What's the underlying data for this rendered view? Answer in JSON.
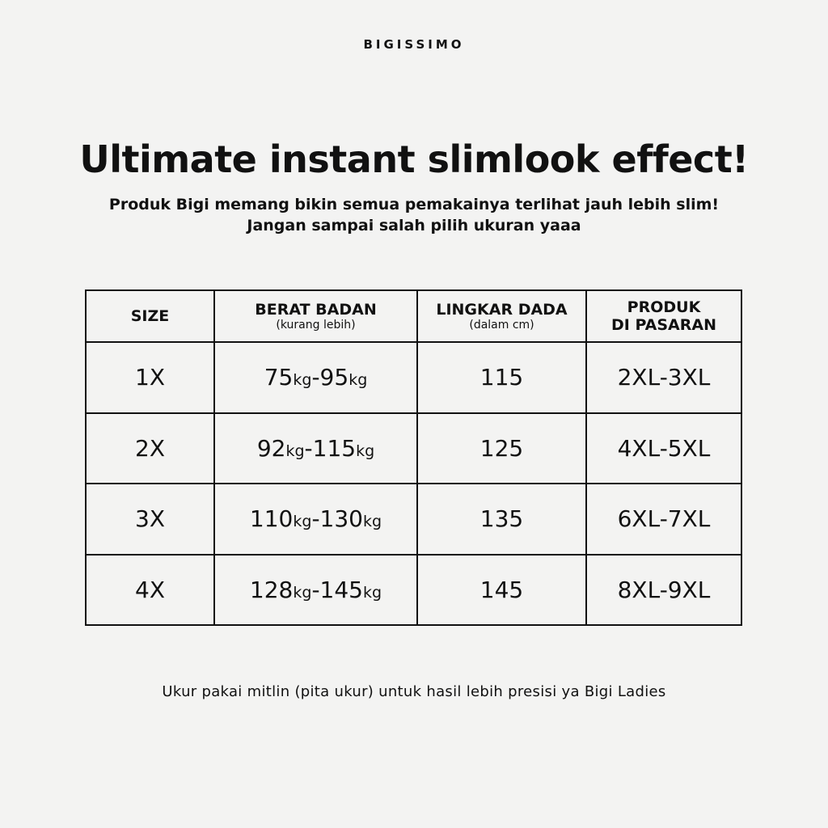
{
  "brand": "BIGISSIMO",
  "title": "Ultimate instant slimlook effect!",
  "subtitle": [
    "Produk Bigi memang bikin semua pemakainya terlihat jauh lebih slim!",
    "Jangan sampai salah pilih ukuran yaaa"
  ],
  "table": {
    "headers": [
      {
        "label": "SIZE",
        "sub": ""
      },
      {
        "label": "BERAT BADAN",
        "sub": "(kurang lebih)"
      },
      {
        "label": "LINGKAR DADA",
        "sub": "(dalam cm)"
      },
      {
        "label": "PRODUK",
        "label2": "DI PASARAN"
      }
    ],
    "rows": [
      {
        "size": "1X",
        "w_from": "75",
        "w_to": "95",
        "unit": "kg",
        "dash": "-",
        "chest": "115",
        "market": "2XL-3XL"
      },
      {
        "size": "2X",
        "w_from": "92",
        "w_to": "115",
        "unit": "kg",
        "dash": "-",
        "chest": "125",
        "market": "4XL-5XL"
      },
      {
        "size": "3X",
        "w_from": "110",
        "w_to": "130",
        "unit": "kg",
        "dash": "-",
        "chest": "135",
        "market": "6XL-7XL"
      },
      {
        "size": "4X",
        "w_from": "128",
        "w_to": "145",
        "unit": "kg",
        "dash": "-",
        "chest": "145",
        "market": "8XL-9XL"
      }
    ]
  },
  "footer": "Ukur pakai mitlin (pita ukur) untuk hasil lebih presisi ya Bigi Ladies"
}
